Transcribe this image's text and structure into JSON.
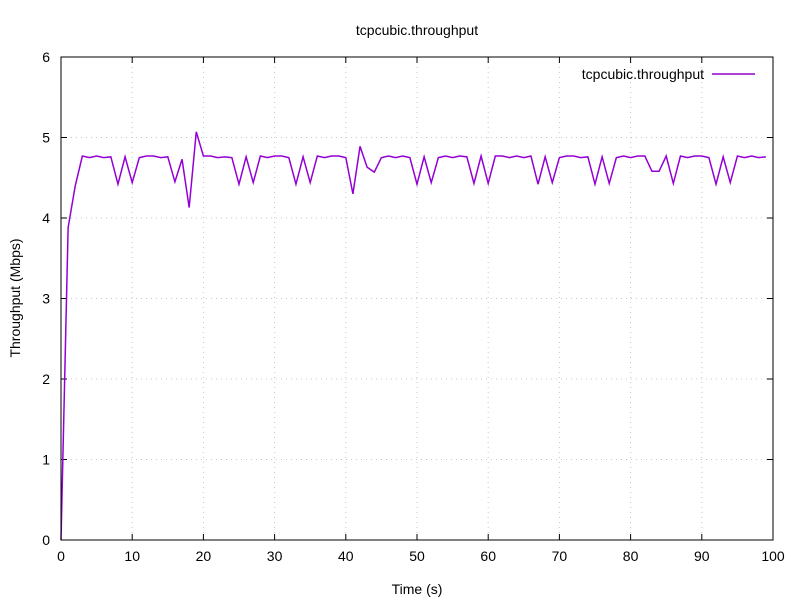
{
  "colors": {
    "series": "#9400d3",
    "grid": "#c8c8c8",
    "axis": "#000000",
    "background": "#ffffff"
  },
  "chart_data": {
    "type": "line",
    "title": "tcpcubic.throughput",
    "xlabel": "Time (s)",
    "ylabel": "Throughput (Mbps)",
    "xlim": [
      0,
      100
    ],
    "ylim": [
      0,
      6
    ],
    "xticks": [
      0,
      10,
      20,
      30,
      40,
      50,
      60,
      70,
      80,
      90,
      100
    ],
    "yticks": [
      0,
      1,
      2,
      3,
      4,
      5,
      6
    ],
    "grid": true,
    "legend_position": "top-right",
    "series": [
      {
        "name": "tcpcubic.throughput",
        "x": [
          0,
          1,
          2,
          3,
          4,
          5,
          6,
          7,
          8,
          9,
          10,
          11,
          12,
          13,
          14,
          15,
          16,
          17,
          18,
          19,
          20,
          21,
          22,
          23,
          24,
          25,
          26,
          27,
          28,
          29,
          30,
          31,
          32,
          33,
          34,
          35,
          36,
          37,
          38,
          39,
          40,
          41,
          42,
          43,
          44,
          45,
          46,
          47,
          48,
          49,
          50,
          51,
          52,
          53,
          54,
          55,
          56,
          57,
          58,
          59,
          60,
          61,
          62,
          63,
          64,
          65,
          66,
          67,
          68,
          69,
          70,
          71,
          72,
          73,
          74,
          75,
          76,
          77,
          78,
          79,
          80,
          81,
          82,
          83,
          84,
          85,
          86,
          87,
          88,
          89,
          90,
          91,
          92,
          93,
          94,
          95,
          96,
          97,
          98,
          99
        ],
        "y": [
          0,
          3.88,
          4.4,
          4.77,
          4.75,
          4.77,
          4.75,
          4.76,
          4.42,
          4.76,
          4.44,
          4.75,
          4.77,
          4.77,
          4.75,
          4.76,
          4.45,
          4.73,
          4.13,
          5.07,
          4.77,
          4.77,
          4.75,
          4.76,
          4.75,
          4.42,
          4.76,
          4.44,
          4.77,
          4.75,
          4.77,
          4.77,
          4.75,
          4.42,
          4.76,
          4.44,
          4.77,
          4.75,
          4.77,
          4.77,
          4.75,
          4.3,
          4.89,
          4.63,
          4.57,
          4.75,
          4.77,
          4.75,
          4.77,
          4.75,
          4.42,
          4.76,
          4.44,
          4.75,
          4.77,
          4.75,
          4.77,
          4.76,
          4.43,
          4.77,
          4.43,
          4.77,
          4.77,
          4.75,
          4.77,
          4.75,
          4.77,
          4.42,
          4.76,
          4.44,
          4.75,
          4.77,
          4.77,
          4.75,
          4.76,
          4.42,
          4.76,
          4.43,
          4.75,
          4.77,
          4.75,
          4.77,
          4.77,
          4.58,
          4.58,
          4.77,
          4.43,
          4.77,
          4.75,
          4.77,
          4.77,
          4.75,
          4.42,
          4.76,
          4.44,
          4.77,
          4.75,
          4.77,
          4.75,
          4.76
        ]
      }
    ]
  }
}
